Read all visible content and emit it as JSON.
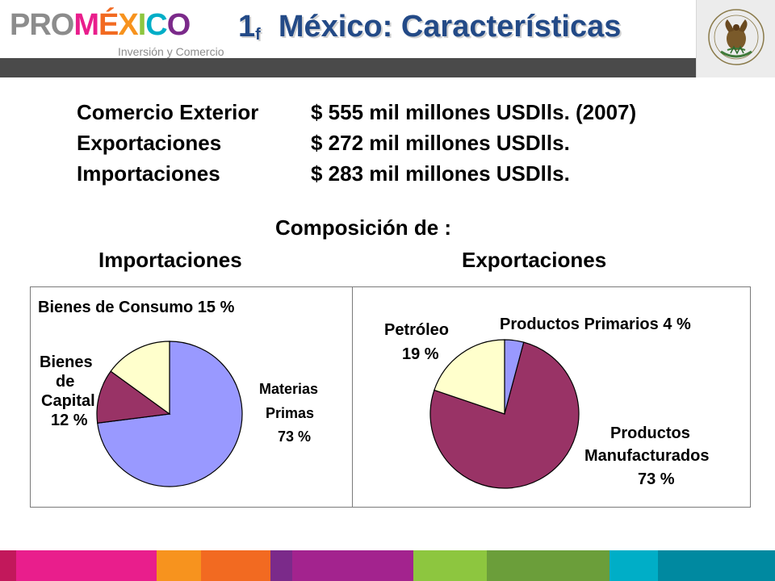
{
  "header": {
    "logo": {
      "pro": "PRO",
      "mexico": "MÉXICO",
      "tagline": "Inversión y Comercio"
    },
    "title_number": "1",
    "title_sub": "f",
    "title": "México: Características",
    "seal_alt": "ESTADOS UNIDOS MEXICANOS"
  },
  "stats": [
    {
      "label": "Comercio Exterior",
      "value": "$ 555 mil millones USDlls. (2007)"
    },
    {
      "label": "Exportaciones",
      "value": "$ 272 mil millones USDlls."
    },
    {
      "label": "Importaciones",
      "value": "$ 283 mil millones USDlls."
    }
  ],
  "composition_title": "Composición de :",
  "chart_data": [
    {
      "type": "pie",
      "title": "Importaciones",
      "slices": [
        {
          "label": "Materias Primas",
          "value": 73,
          "display": "73 %",
          "color": "#9999ff"
        },
        {
          "label": "Bienes de Capital",
          "value": 12,
          "display": "12 %",
          "color": "#993366"
        },
        {
          "label": "Bienes de Consumo",
          "value": 15,
          "display": "15 %",
          "color": "#ffffcc"
        }
      ],
      "labels": {
        "consumo": "Bienes de Consumo 15 %",
        "capital_1": "Bienes",
        "capital_2": "de",
        "capital_3": "Capital",
        "capital_4": "12 %",
        "materias_1": "Materias",
        "materias_2": "Primas",
        "materias_3": "73 %"
      }
    },
    {
      "type": "pie",
      "title": "Exportaciones",
      "slices": [
        {
          "label": "Productos Primarios",
          "value": 4,
          "display": "4 %",
          "color": "#9999ff"
        },
        {
          "label": "Productos Manufacturados",
          "value": 73,
          "display": "73 %",
          "color": "#993366"
        },
        {
          "label": "Petróleo",
          "value": 19,
          "display": "19 %",
          "color": "#ffffcc"
        }
      ],
      "labels": {
        "primarios": "Productos Primarios  4  %",
        "petroleo_1": "Petróleo",
        "petroleo_2": "19  %",
        "manuf_1": "Productos",
        "manuf_2": "Manufacturados",
        "manuf_3": "73 %"
      }
    }
  ],
  "colors": {
    "title": "#234a87",
    "header_bar": "#4a4a4a",
    "footer": [
      "#c2185b",
      "#e91e8c",
      "#f7931e",
      "#f26a21",
      "#7b2a8a",
      "#a3238e",
      "#8dc63f",
      "#6b9e3a",
      "#00aec7",
      "#0089a0"
    ]
  }
}
